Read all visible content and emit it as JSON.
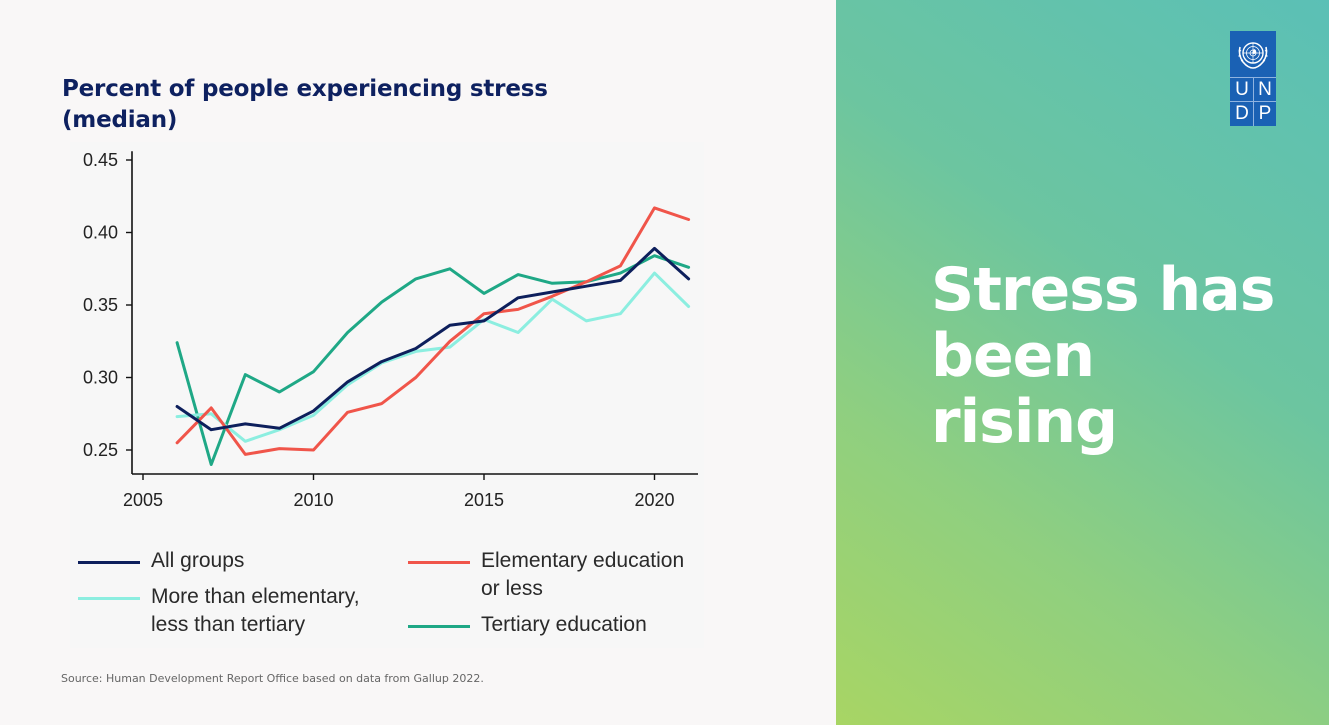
{
  "chart_data": {
    "type": "line",
    "title": "Percent of people experiencing stress (median)",
    "title_lines": [
      "Percent of people experiencing stress",
      "(median)"
    ],
    "xlabel": "",
    "ylabel": "",
    "xlim": [
      2005,
      2021.3
    ],
    "ylim": [
      0.238,
      0.456
    ],
    "xticks": [
      2005,
      2010,
      2015,
      2020
    ],
    "xtick_labels": [
      "2005",
      "2010",
      "2015",
      "2020"
    ],
    "yticks": [
      0.25,
      0.3,
      0.35,
      0.4,
      0.45
    ],
    "ytick_labels": [
      "0.25",
      "0.30",
      "0.35",
      "0.40",
      "0.45"
    ],
    "grid": false,
    "legend_position": "bottom",
    "x": [
      2006,
      2007,
      2008,
      2009,
      2010,
      2011,
      2012,
      2013,
      2014,
      2015,
      2016,
      2017,
      2018,
      2019,
      2020,
      2021
    ],
    "series": [
      {
        "name": "All groups",
        "color": "#0d1f5c",
        "values": [
          0.28,
          0.264,
          0.268,
          0.265,
          0.277,
          0.297,
          0.311,
          0.32,
          0.336,
          0.339,
          0.355,
          0.359,
          0.363,
          0.367,
          0.389,
          0.368
        ]
      },
      {
        "name": "More than elementary, less than tertiary",
        "color": "#8ceee0",
        "values": [
          0.273,
          0.275,
          0.256,
          0.264,
          0.274,
          0.295,
          0.31,
          0.318,
          0.321,
          0.34,
          0.331,
          0.354,
          0.339,
          0.344,
          0.372,
          0.349
        ]
      },
      {
        "name": "Elementary education or less",
        "color": "#f0554a",
        "values": [
          0.255,
          0.279,
          0.247,
          0.251,
          0.25,
          0.276,
          0.282,
          0.3,
          0.325,
          0.344,
          0.347,
          0.356,
          0.366,
          0.377,
          0.417,
          0.409
        ]
      },
      {
        "name": "Tertiary education",
        "color": "#1fa886",
        "values": [
          0.324,
          0.24,
          0.302,
          0.29,
          0.304,
          0.331,
          0.352,
          0.368,
          0.375,
          0.358,
          0.371,
          0.365,
          0.366,
          0.372,
          0.384,
          0.376
        ]
      }
    ]
  },
  "legend": {
    "all_groups": "All groups",
    "more_than_elementary_line1": "More than elementary,",
    "more_than_elementary_line2": "less than tertiary",
    "elementary_line1": "Elementary education",
    "elementary_line2": "or less",
    "tertiary": "Tertiary education"
  },
  "source": "Source: Human Development Report Office based on data from Gallup 2022.",
  "headline": {
    "line1": "Stress has",
    "line2": "been",
    "line3": "rising"
  },
  "logo": {
    "letters": [
      "U",
      "N",
      "D",
      "P"
    ],
    "color": "#1a61b4"
  },
  "colors": {
    "title": "#0e2160",
    "gradient_start": "#a8d564",
    "gradient_end": "#5bc0b6"
  }
}
